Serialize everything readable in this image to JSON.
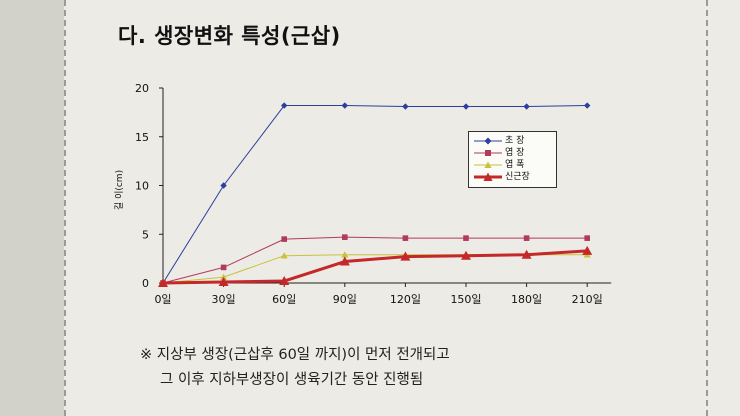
{
  "title": "다. 생장변화 특성(근삽)",
  "notes": [
    "※ 지상부 생장(근삽후 60일 까지)이 먼저 전개되고",
    "그 이후 지하부생장이 생육기간 동안 진행됨"
  ],
  "chart_data": {
    "type": "line",
    "categories": [
      "0일",
      "30일",
      "60일",
      "90일",
      "120일",
      "150일",
      "180일",
      "210일"
    ],
    "ylabel": "길 이(cm)",
    "ylim": [
      0,
      20
    ],
    "yticks": [
      0,
      5,
      10,
      15,
      20
    ],
    "grid": false,
    "legend_position": "right",
    "series": [
      {
        "name": "초 장",
        "color": "#2c3f9e",
        "marker": "diamond",
        "width": 1,
        "values": [
          0,
          10,
          18.2,
          18.2,
          18.1,
          18.1,
          18.1,
          18.2
        ]
      },
      {
        "name": "엽 장",
        "color": "#b23a5a",
        "marker": "square",
        "width": 1,
        "values": [
          0,
          1.6,
          4.5,
          4.7,
          4.6,
          4.6,
          4.6,
          4.6
        ]
      },
      {
        "name": "엽 폭",
        "color": "#c9c23a",
        "marker": "triangle",
        "width": 1,
        "values": [
          0,
          0.6,
          2.8,
          2.9,
          2.9,
          2.9,
          2.9,
          2.9
        ]
      },
      {
        "name": "신근장",
        "color": "#c42828",
        "marker": "triangle",
        "width": 3,
        "values": [
          0,
          0.1,
          0.2,
          2.2,
          2.7,
          2.8,
          2.9,
          3.3
        ]
      }
    ]
  }
}
